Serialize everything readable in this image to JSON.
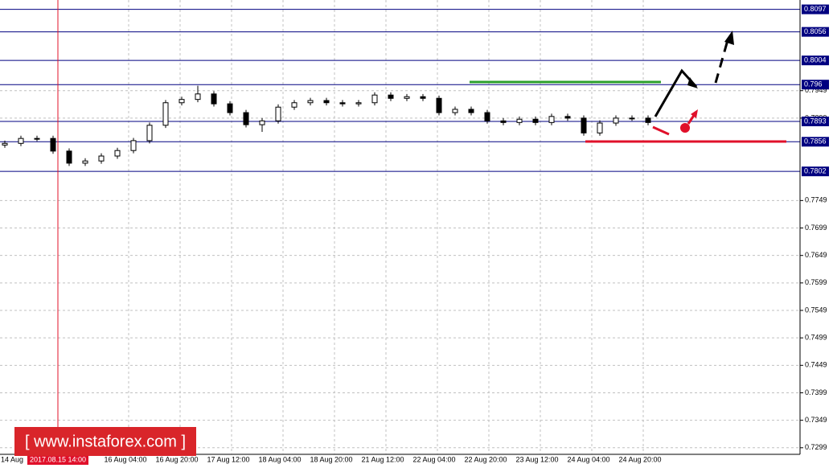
{
  "chart_data": {
    "type": "candlestick",
    "watermark": "[ www.instaforex.com ]",
    "crosshair_label": "2017.08.15 14:00",
    "x_tick_labels": [
      "14 Aug",
      "16 Aug 04:00",
      "16 Aug 20:00",
      "17 Aug 12:00",
      "18 Aug 04:00",
      "18 Aug 20:00",
      "21 Aug 12:00",
      "22 Aug 04:00",
      "22 Aug 20:00",
      "23 Aug 12:00",
      "24 Aug 04:00",
      "24 Aug 20:00"
    ],
    "open": [
      0.785,
      0.7853,
      0.7862,
      0.7862,
      0.7839,
      0.7817,
      0.7821,
      0.783,
      0.784,
      0.7858,
      0.7886,
      0.7927,
      0.7933,
      0.7943,
      0.7925,
      0.7909,
      0.7887,
      0.7894,
      0.7919,
      0.7927,
      0.7931,
      0.7927,
      0.7925,
      0.7927,
      0.7941,
      0.7935,
      0.7938,
      0.7935,
      0.7909,
      0.7915,
      0.7909,
      0.7894,
      0.7891,
      0.7897,
      0.7891,
      0.7902,
      0.7899,
      0.7872,
      0.789,
      0.7899,
      0.7899
    ],
    "high": [
      0.7858,
      0.7867,
      0.7867,
      0.7867,
      0.7844,
      0.7826,
      0.7835,
      0.7845,
      0.7863,
      0.7891,
      0.7932,
      0.7938,
      0.7958,
      0.7948,
      0.793,
      0.7914,
      0.7899,
      0.7924,
      0.7932,
      0.7936,
      0.7936,
      0.7932,
      0.7932,
      0.7946,
      0.7946,
      0.7943,
      0.7943,
      0.794,
      0.792,
      0.792,
      0.7914,
      0.7899,
      0.7902,
      0.7902,
      0.7907,
      0.7907,
      0.7904,
      0.7895,
      0.7904,
      0.7904,
      0.7904
    ],
    "low": [
      0.7845,
      0.7848,
      0.7857,
      0.7834,
      0.7812,
      0.7812,
      0.7816,
      0.7825,
      0.7835,
      0.7853,
      0.7881,
      0.7922,
      0.7928,
      0.792,
      0.7904,
      0.7882,
      0.7874,
      0.7889,
      0.7914,
      0.7922,
      0.7922,
      0.792,
      0.792,
      0.7922,
      0.793,
      0.793,
      0.793,
      0.7904,
      0.7904,
      0.7904,
      0.7889,
      0.7886,
      0.7886,
      0.7886,
      0.7886,
      0.7894,
      0.7867,
      0.7867,
      0.7885,
      0.7894,
      0.7886
    ],
    "close": [
      0.7853,
      0.7862,
      0.7862,
      0.7839,
      0.7817,
      0.7821,
      0.783,
      0.784,
      0.7858,
      0.7886,
      0.7927,
      0.7933,
      0.7943,
      0.7925,
      0.7909,
      0.7887,
      0.7894,
      0.7919,
      0.7927,
      0.7931,
      0.7927,
      0.7925,
      0.7927,
      0.7941,
      0.7935,
      0.7938,
      0.7935,
      0.7909,
      0.7915,
      0.7909,
      0.7894,
      0.7891,
      0.7897,
      0.7891,
      0.7902,
      0.7899,
      0.7872,
      0.789,
      0.7899,
      0.7899,
      0.7891
    ],
    "ylim": [
      0.7287,
      0.8114
    ],
    "yticks": [
      0.7299,
      0.7349,
      0.7399,
      0.7449,
      0.7499,
      0.7549,
      0.7599,
      0.7649,
      0.7699,
      0.7749,
      0.7899,
      0.7949
    ],
    "levels": [
      0.8097,
      0.8056,
      0.8004,
      0.796,
      0.7893,
      0.7856,
      0.7802
    ],
    "level_color": "#000080",
    "grid": true
  }
}
